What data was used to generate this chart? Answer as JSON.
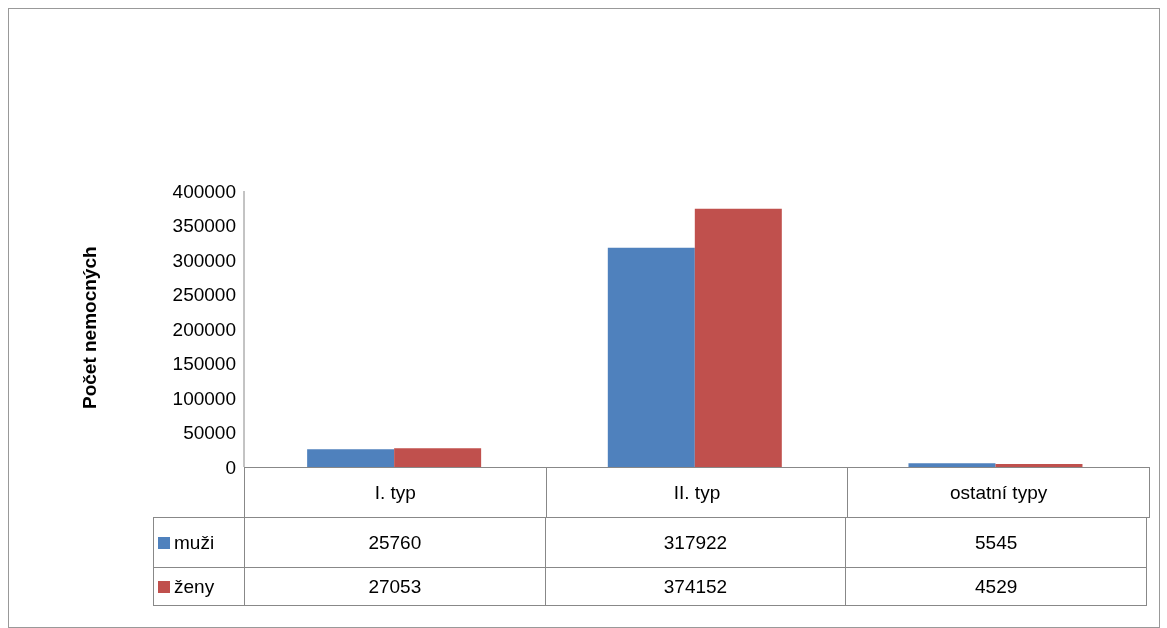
{
  "chart_data": {
    "type": "bar",
    "ylabel": "Počet nemocných",
    "categories": [
      "I. typ",
      "II. typ",
      "ostatní typy"
    ],
    "series": [
      {
        "name": "muži",
        "color": "#4f81bd",
        "values": [
          25760,
          317922,
          5545
        ]
      },
      {
        "name": "ženy",
        "color": "#c0504d",
        "values": [
          27053,
          374152,
          4529
        ]
      }
    ],
    "ylim": [
      0,
      400000
    ],
    "yticks": [
      0,
      50000,
      100000,
      150000,
      200000,
      250000,
      300000,
      350000,
      400000
    ],
    "grid": false,
    "legend": "bottom",
    "data_labels": true
  }
}
